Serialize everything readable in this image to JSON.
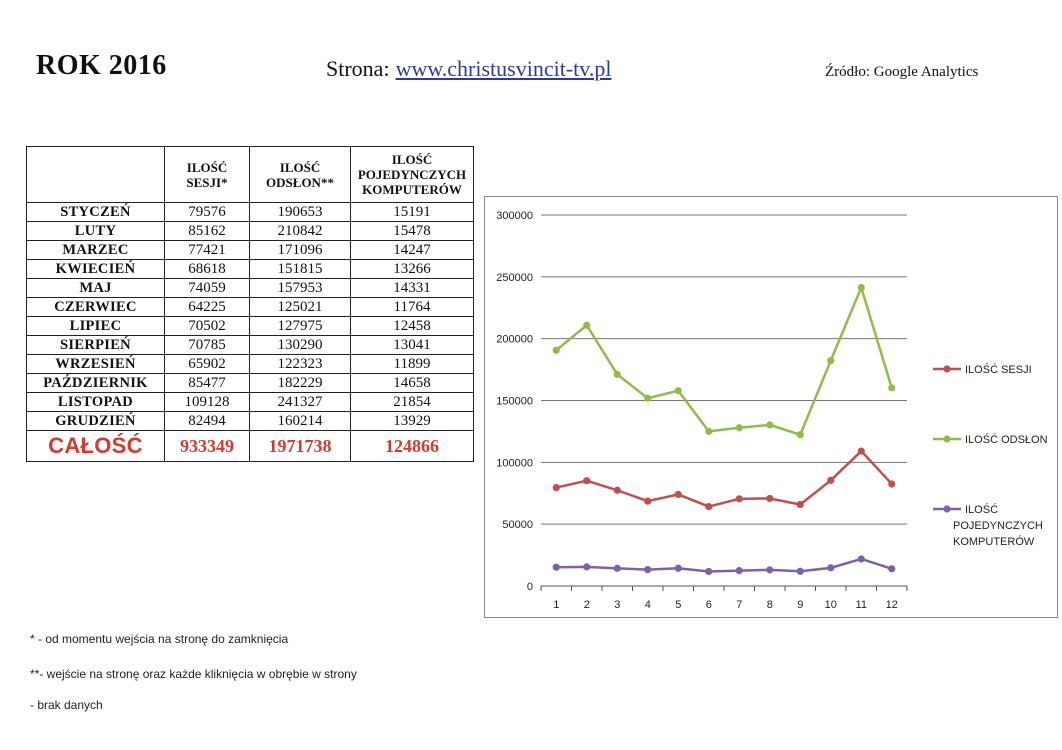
{
  "header": {
    "title": "ROK 2016",
    "site_label": "Strona:",
    "site_url": "www.christusvincit-tv.pl",
    "source": "Źródło: Google Analytics"
  },
  "table": {
    "headers": [
      "",
      "ILOŚĆ SESJI*",
      "ILOŚĆ ODSŁON**",
      "ILOŚĆ POJEDYNCZYCH KOMPUTERÓW"
    ],
    "rows": [
      {
        "month": "STYCZEŃ",
        "sesje": "79576",
        "odslony": "190653",
        "komputery": "15191"
      },
      {
        "month": "LUTY",
        "sesje": "85162",
        "odslony": "210842",
        "komputery": "15478"
      },
      {
        "month": "MARZEC",
        "sesje": "77421",
        "odslony": "171096",
        "komputery": "14247"
      },
      {
        "month": "KWIECIEŃ",
        "sesje": "68618",
        "odslony": "151815",
        "komputery": "13266"
      },
      {
        "month": "MAJ",
        "sesje": "74059",
        "odslony": "157953",
        "komputery": "14331"
      },
      {
        "month": "CZERWIEC",
        "sesje": "64225",
        "odslony": "125021",
        "komputery": "11764"
      },
      {
        "month": "LIPIEC",
        "sesje": "70502",
        "odslony": "127975",
        "komputery": "12458"
      },
      {
        "month": "SIERPIEŃ",
        "sesje": "70785",
        "odslony": "130290",
        "komputery": "13041"
      },
      {
        "month": "WRZESIEŃ",
        "sesje": "65902",
        "odslony": "122323",
        "komputery": "11899"
      },
      {
        "month": "PAŹDZIERNIK",
        "sesje": "85477",
        "odslony": "182229",
        "komputery": "14658"
      },
      {
        "month": "LISTOPAD",
        "sesje": "109128",
        "odslony": "241327",
        "komputery": "21854"
      },
      {
        "month": "GRUDZIEŃ",
        "sesje": "82494",
        "odslony": "160214",
        "komputery": "13929"
      }
    ],
    "total": {
      "month": "CAŁOŚĆ",
      "sesje": "933349",
      "odslony": "1971738",
      "komputery": "124866"
    }
  },
  "chart_data": {
    "type": "line",
    "x": [
      1,
      2,
      3,
      4,
      5,
      6,
      7,
      8,
      9,
      10,
      11,
      12
    ],
    "ylim": [
      0,
      300000
    ],
    "yticks": [
      0,
      50000,
      100000,
      150000,
      200000,
      250000,
      300000
    ],
    "grid": true,
    "legend_position": "right",
    "series": [
      {
        "name": "ILOŚĆ SESJI",
        "color": "#c0504d",
        "values": [
          79576,
          85162,
          77421,
          68618,
          74059,
          64225,
          70502,
          70785,
          65902,
          85477,
          109128,
          82494
        ]
      },
      {
        "name": "ILOŚĆ ODSŁON",
        "color": "#8ebd4a",
        "values": [
          190653,
          210842,
          171096,
          151815,
          157953,
          125021,
          127975,
          130290,
          122323,
          182229,
          241327,
          160214
        ]
      },
      {
        "name": "ILOŚĆ POJEDYNCZYCH KOMPUTERÓW",
        "color": "#7e62a8",
        "values": [
          15191,
          15478,
          14247,
          13266,
          14331,
          11764,
          12458,
          13041,
          11899,
          14658,
          21854,
          13929
        ]
      }
    ]
  },
  "notes": [
    "* -  od momentu wejścia na stronę do zamknięcia",
    "**- wejście na stronę oraz każde kliknięcia w obrębie w strony",
    "- brak danych"
  ]
}
